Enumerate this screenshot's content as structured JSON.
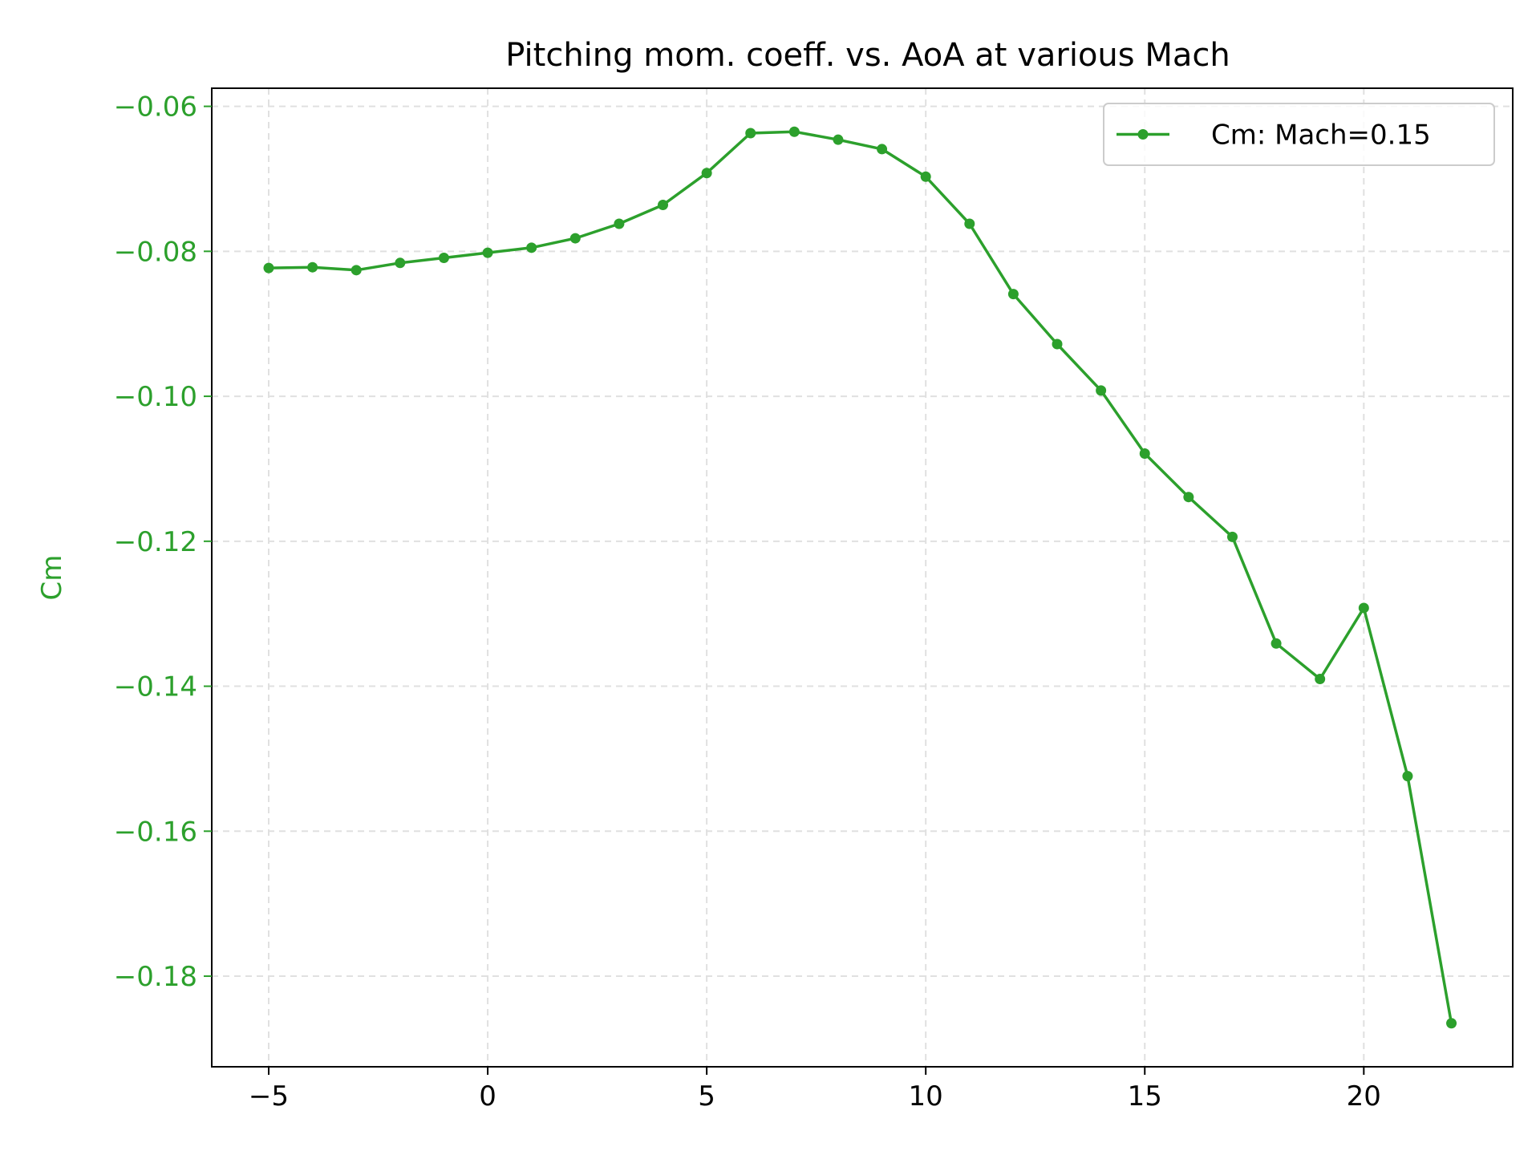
{
  "chart_data": {
    "type": "line",
    "title": "Pitching mom. coeff. vs. AoA at various Mach",
    "xlabel": "",
    "ylabel": "Cm",
    "xlim": [
      -6.3,
      23.4
    ],
    "ylim": [
      -0.1925,
      -0.0575
    ],
    "x_ticks": [
      -5,
      0,
      5,
      10,
      15,
      20
    ],
    "x_tick_labels": [
      "−5",
      "0",
      "5",
      "10",
      "15",
      "20"
    ],
    "y_ticks": [
      -0.06,
      -0.08,
      -0.1,
      -0.12,
      -0.14,
      -0.16,
      -0.18
    ],
    "y_tick_labels": [
      "−0.06",
      "−0.08",
      "−0.10",
      "−0.12",
      "−0.14",
      "−0.16",
      "−0.18"
    ],
    "grid": true,
    "legend_position": "top-right",
    "series": [
      {
        "name": "Cm: Mach=0.15",
        "color": "#2ca02c",
        "marker": "circle",
        "x": [
          -5,
          -4,
          -3,
          -2,
          -1,
          0,
          1,
          2,
          3,
          4,
          5,
          6,
          7,
          8,
          9,
          10,
          11,
          12,
          13,
          14,
          15,
          16,
          17,
          18,
          19,
          20,
          21,
          22
        ],
        "y": [
          -0.0823,
          -0.0822,
          -0.0826,
          -0.0816,
          -0.0809,
          -0.0802,
          -0.0795,
          -0.0782,
          -0.0762,
          -0.0736,
          -0.0692,
          -0.0637,
          -0.0635,
          -0.0646,
          -0.0659,
          -0.0697,
          -0.0762,
          -0.0859,
          -0.0928,
          -0.0992,
          -0.1079,
          -0.1139,
          -0.1194,
          -0.1341,
          -0.139,
          -0.1292,
          -0.1524,
          -0.1865
        ]
      }
    ]
  },
  "colors": {
    "axis_label_color": "#2ca02c",
    "tick_label_y_color": "#2ca02c",
    "tick_label_x_color": "#000000",
    "grid_color": "#e0e0e0"
  }
}
